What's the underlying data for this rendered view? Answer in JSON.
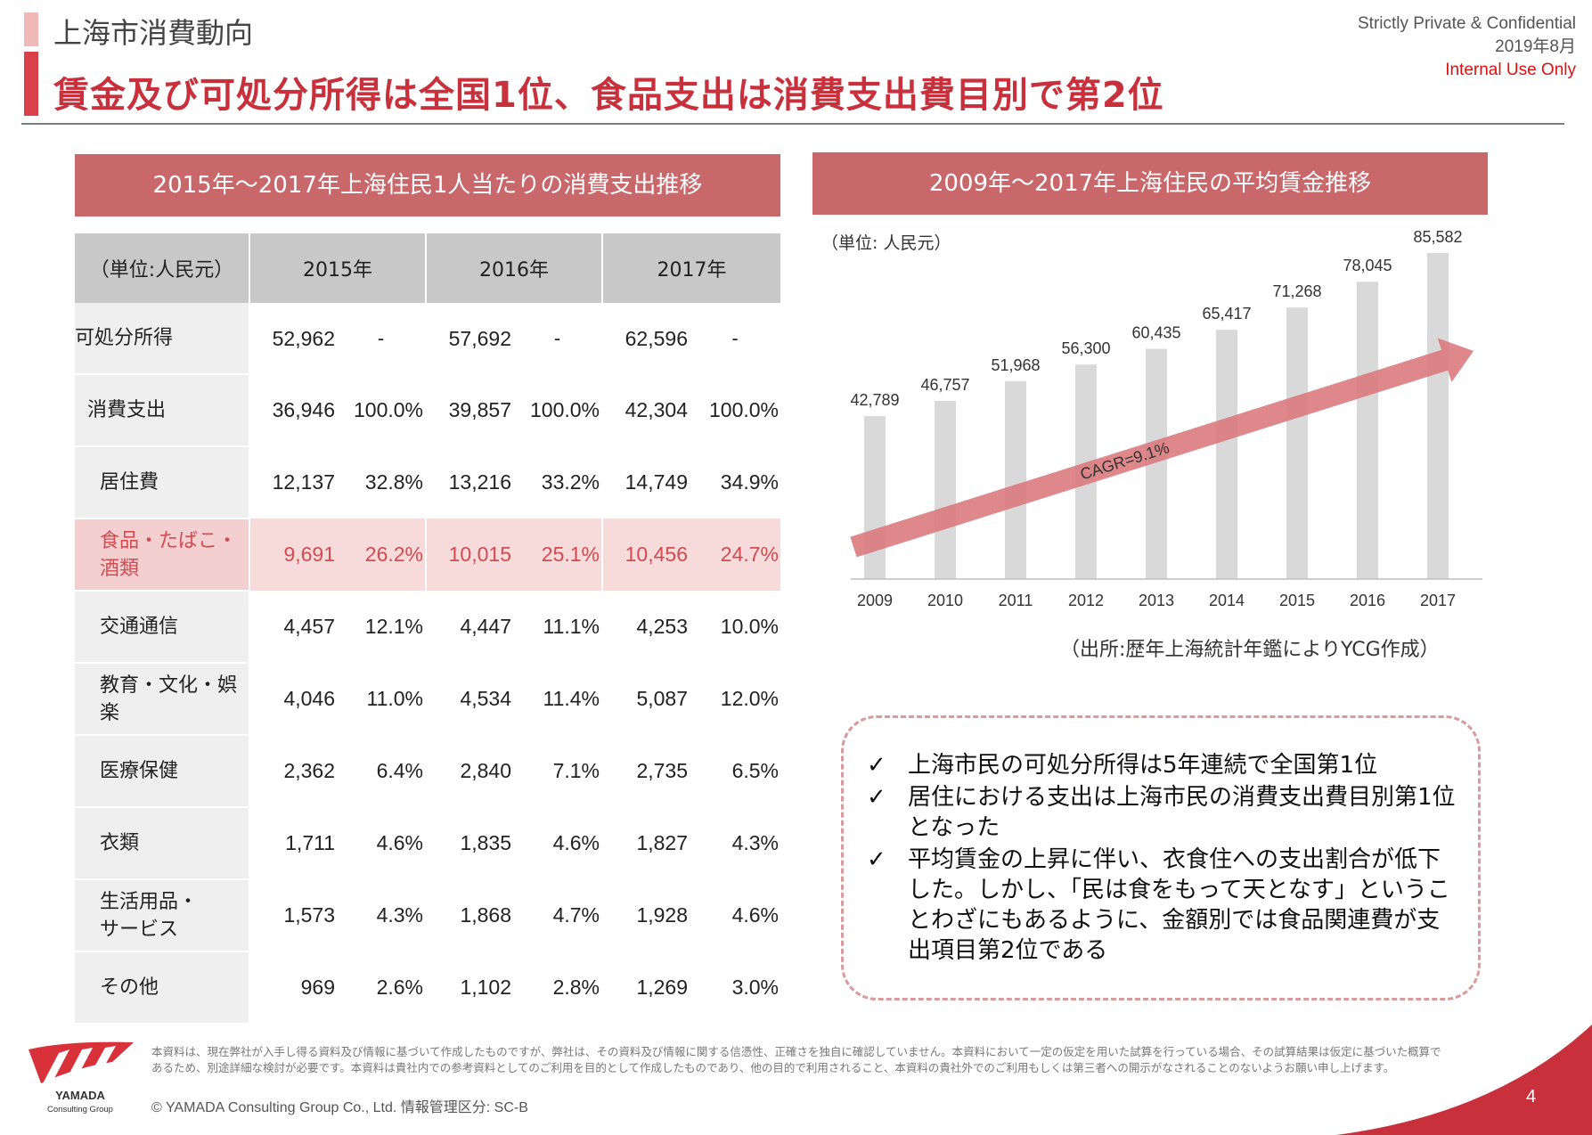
{
  "header": {
    "section_title": "上海市消費動向",
    "main_title": "賃金及び可処分所得は全国1位、食品支出は消費支出費目別で第2位",
    "meta_line1": "Strictly Private & Confidential",
    "meta_line2": "2019年8月",
    "meta_line3": "Internal Use Only"
  },
  "table_section": {
    "title": "2015年～2017年上海住民1人当たりの消費支出推移",
    "unit_header": "（単位:人民元）",
    "years": [
      "2015年",
      "2016年",
      "2017年"
    ],
    "rows": [
      {
        "label": [
          "可処分所得"
        ],
        "v": [
          "52,962",
          "-",
          "57,692",
          "-",
          "62,596",
          "-"
        ]
      },
      {
        "label": [
          "消費支出"
        ],
        "v": [
          "36,946",
          "100.0%",
          "39,857",
          "100.0%",
          "42,304",
          "100.0%"
        ]
      },
      {
        "label": [
          "居住費"
        ],
        "v": [
          "12,137",
          "32.8%",
          "13,216",
          "33.2%",
          "14,749",
          "34.9%"
        ]
      },
      {
        "label": [
          "食品・たばこ・",
          "酒類"
        ],
        "v": [
          "9,691",
          "26.2%",
          "10,015",
          "25.1%",
          "10,456",
          "24.7%"
        ]
      },
      {
        "label": [
          "交通通信"
        ],
        "v": [
          "4,457",
          "12.1%",
          "4,447",
          "11.1%",
          "4,253",
          "10.0%"
        ]
      },
      {
        "label": [
          "教育・文化・娯楽"
        ],
        "v": [
          "4,046",
          "11.0%",
          "4,534",
          "11.4%",
          "5,087",
          "12.0%"
        ]
      },
      {
        "label": [
          "医療保健"
        ],
        "v": [
          "2,362",
          "6.4%",
          "2,840",
          "7.1%",
          "2,735",
          "6.5%"
        ]
      },
      {
        "label": [
          "衣類"
        ],
        "v": [
          "1,711",
          "4.6%",
          "1,835",
          "4.6%",
          "1,827",
          "4.3%"
        ]
      },
      {
        "label": [
          "生活用品・",
          "サービス"
        ],
        "v": [
          "1,573",
          "4.3%",
          "1,868",
          "4.7%",
          "1,928",
          "4.6%"
        ]
      },
      {
        "label": [
          "その他"
        ],
        "v": [
          "969",
          "2.6%",
          "1,102",
          "2.8%",
          "1,269",
          "3.0%"
        ]
      }
    ]
  },
  "chart_section": {
    "title": "2009年～2017年上海住民の平均賃金推移",
    "source": "（出所:歴年上海統計年鑑によりYCG作成）"
  },
  "chart_data": {
    "type": "bar",
    "categories": [
      "2009",
      "2010",
      "2011",
      "2012",
      "2013",
      "2014",
      "2015",
      "2016",
      "2017"
    ],
    "values": [
      42789,
      46757,
      51968,
      56300,
      60435,
      65417,
      71268,
      78045,
      85582
    ],
    "value_labels": [
      "42,789",
      "46,757",
      "51,968",
      "56,300",
      "60,435",
      "65,417",
      "71,268",
      "78,045",
      "85,582"
    ],
    "unit_label": "（単位: 人民元）",
    "annotation": "CAGR=9.1%",
    "bar_color": "#d9d9d9",
    "arrow_color": "#d9787c",
    "ylim": [
      0,
      85582
    ]
  },
  "bullets": {
    "check": "✓",
    "items": [
      "上海市民の可処分所得は5年連続で全国第1位",
      "居住における支出は上海市民の消費支出費目別第1位となった",
      "平均賃金の上昇に伴い、衣食住への支出割合が低下した。しかし、「民は食をもって天となす」ということわざにもあるように、金額別では食品関連費が支出項目第2位である"
    ]
  },
  "footer": {
    "disclaimer": "本資料は、現在弊社が入手し得る資料及び情報に基づいて作成したものですが、弊社は、その資料及び情報に関する信憑性、正確さを独自に確認していません。本資料において一定の仮定を用いた試算を行っている場合、その試算結果は仮定に基づいた概算であるため、別途詳細な検討が必要です。本資料は貴社内での参考資料としてのご利用を目的として作成したものであり、他の目的で利用されること、本資料の貴社外でのご利用もしくは第三者への開示がなされることのないようお願い申し上げます。",
    "copyright": "©  YAMADA Consulting  Group  Co., Ltd.     情報管理区分: SC-B",
    "logo_line1": "YAMADA",
    "logo_line2": "Consulting Group",
    "page_number": "4",
    "accent": "#c8313b"
  }
}
